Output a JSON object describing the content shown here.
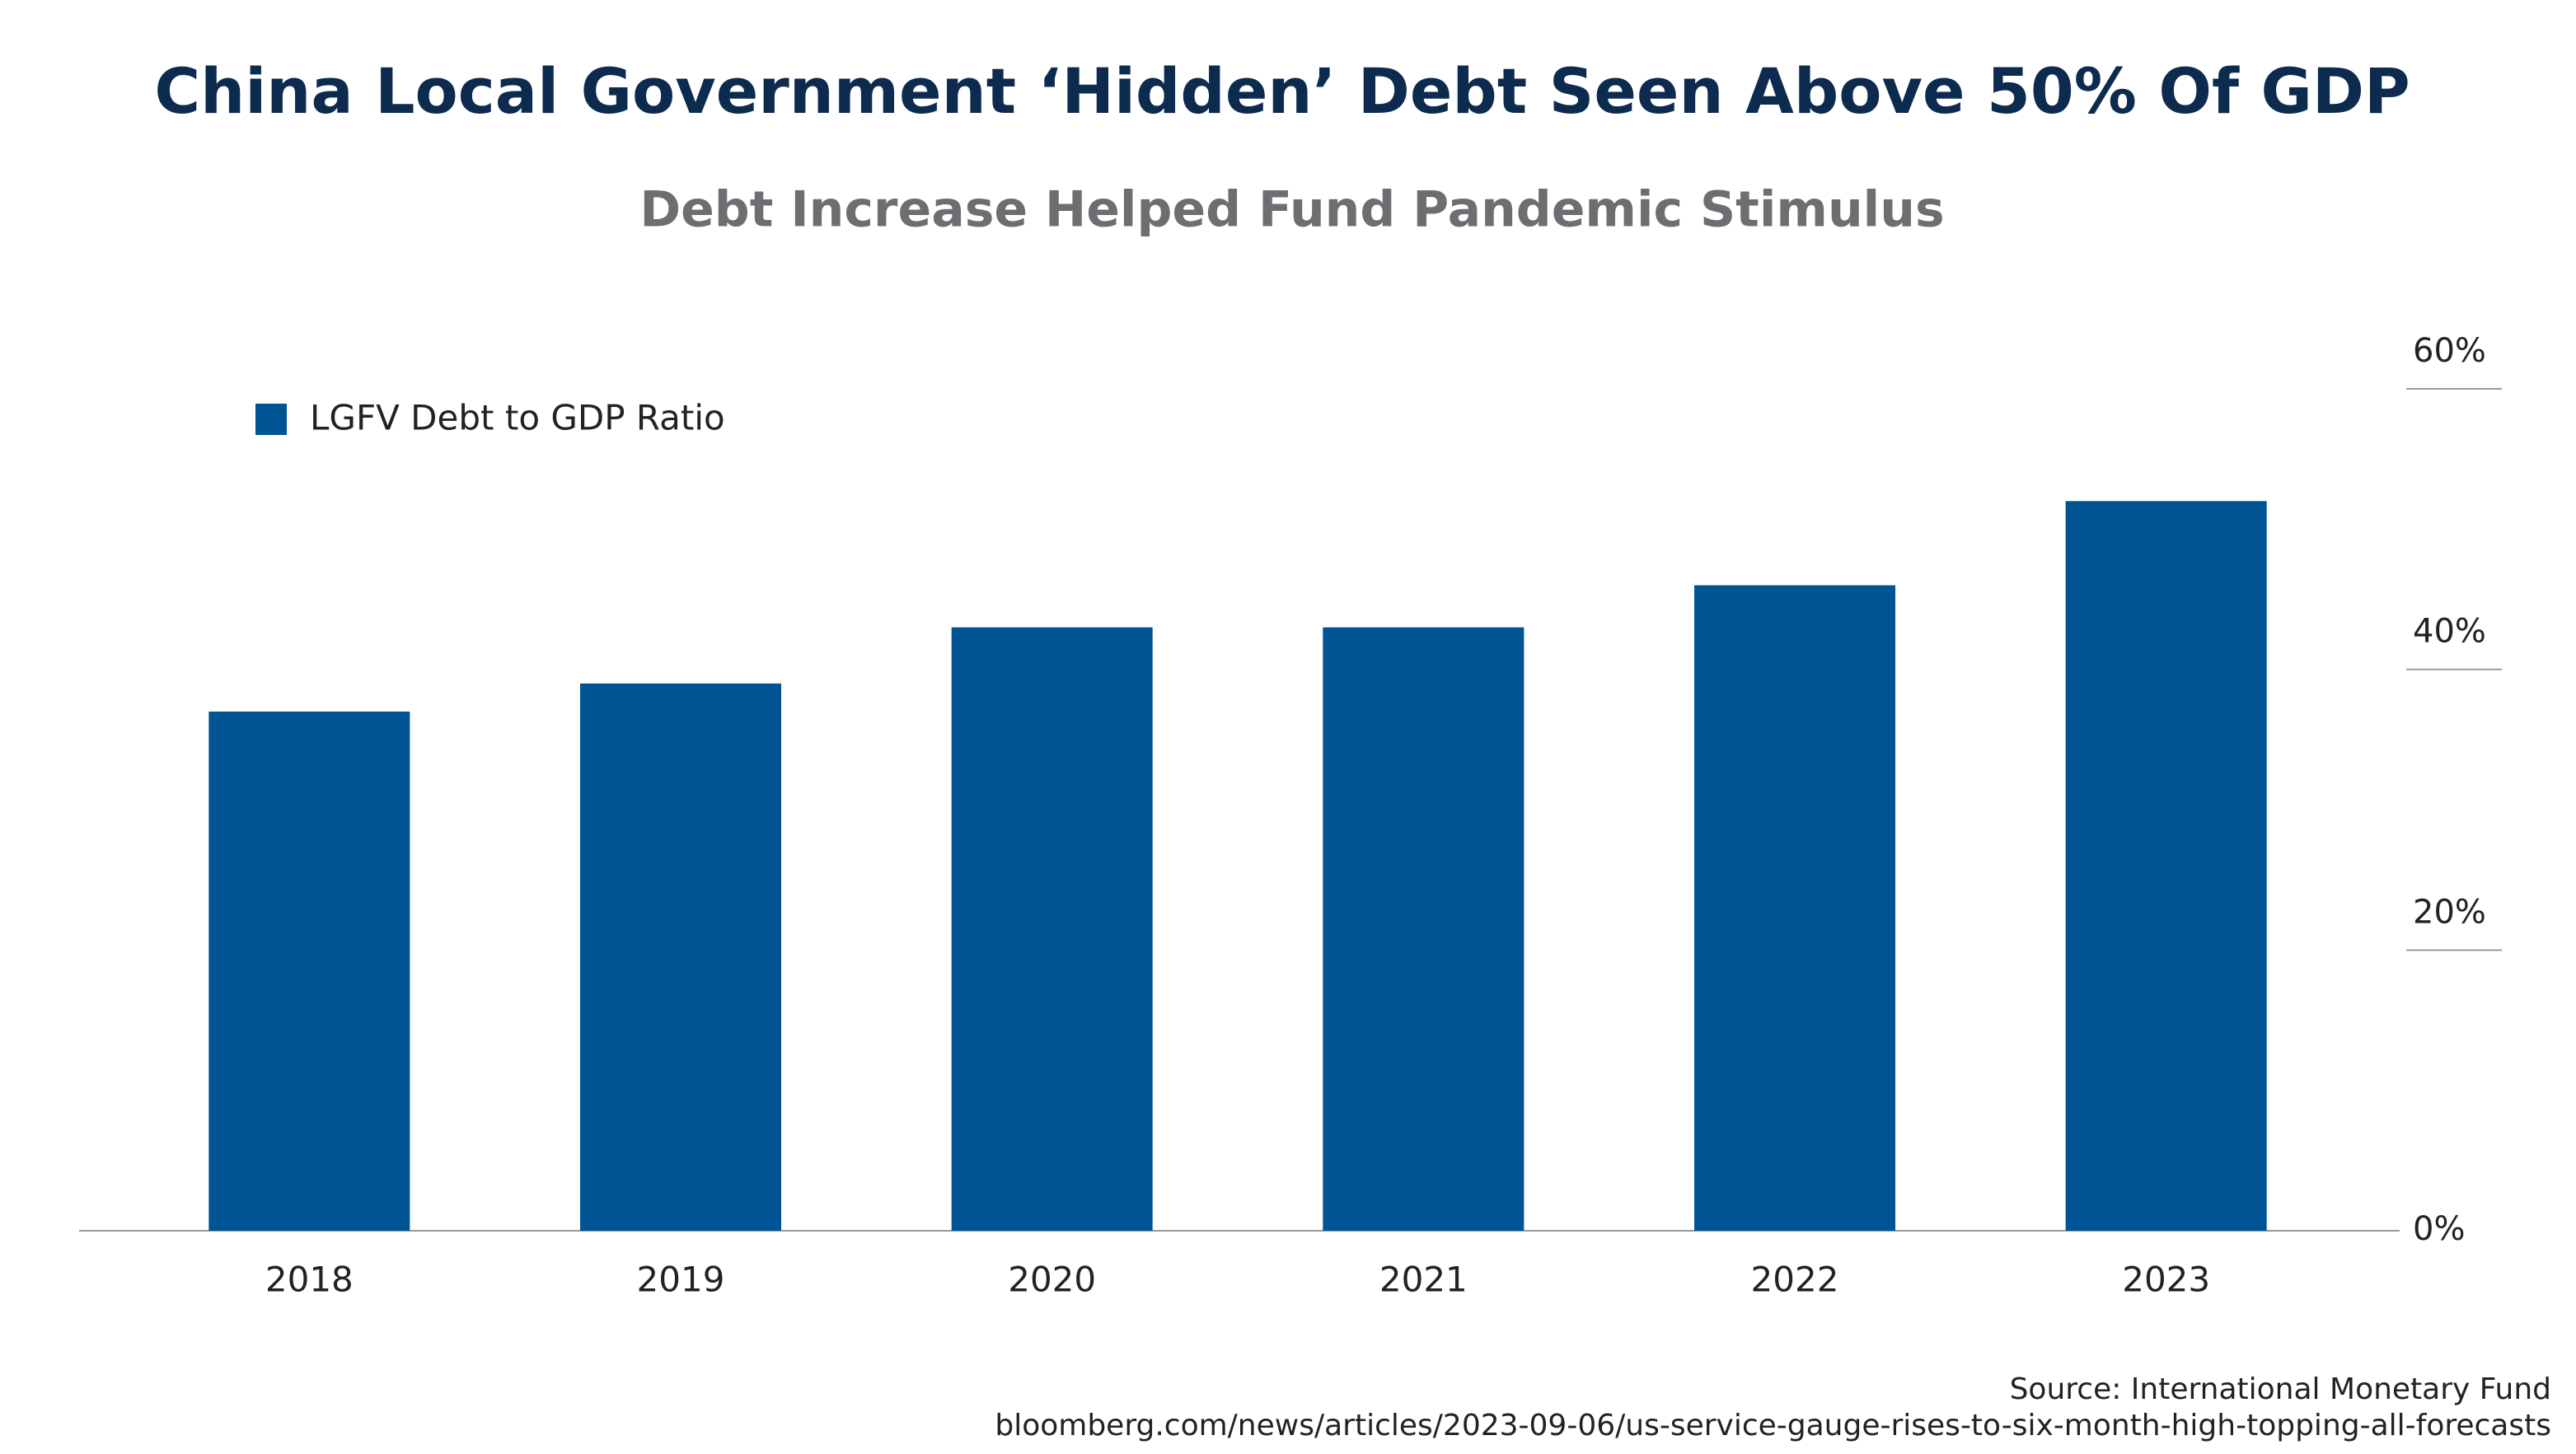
{
  "chart_data": {
    "type": "bar",
    "title": "China Local Government ‘Hidden’ Debt Seen Above 50% Of GDP",
    "subtitle": "Debt Increase Helped Fund Pandemic Stimulus",
    "categories": [
      "2018",
      "2019",
      "2020",
      "2021",
      "2022",
      "2023"
    ],
    "series": [
      {
        "name": "LGFV Debt to GDP Ratio",
        "color": "#005493",
        "values": [
          37,
          39,
          43,
          43,
          46,
          52
        ]
      }
    ],
    "ylim": [
      0,
      60
    ],
    "yticks": [
      {
        "value": 0,
        "label": "0%"
      },
      {
        "value": 20,
        "label": "20%"
      },
      {
        "value": 40,
        "label": "40%"
      },
      {
        "value": 60,
        "label": "60%"
      }
    ],
    "legend": "top-left",
    "source": "Source: International Monetary Fund",
    "url": "bloomberg.com/news/articles/2023-09-06/us-service-gauge-rises-to-six-month-high-topping-all-forecasts"
  }
}
